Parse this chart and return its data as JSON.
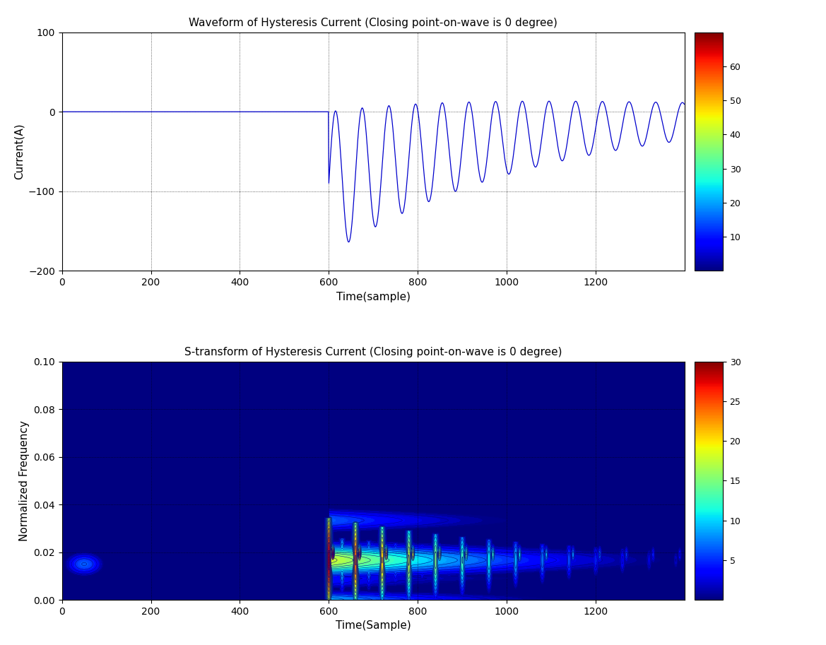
{
  "title1": "Waveform of Hysteresis Current (Closing point-on-wave is 0 degree)",
  "title2": "S-transform of Hysteresis Current (Closing point-on-wave is 0 degree)",
  "xlabel1": "Time(sample)",
  "ylabel1": "Current(A)",
  "xlabel2": "Time(Sample)",
  "ylabel2": "Normalized Frequency",
  "xlim": [
    0,
    1400
  ],
  "ylim1": [
    -200,
    100
  ],
  "ylim2": [
    0,
    0.1
  ],
  "yticks1": [
    -200,
    -100,
    0,
    100
  ],
  "yticks2": [
    0,
    0.02,
    0.04,
    0.06,
    0.08,
    0.1
  ],
  "xticks": [
    0,
    200,
    400,
    600,
    800,
    1000,
    1200
  ],
  "colorbar1_ticks": [
    10,
    20,
    30,
    40,
    50,
    60
  ],
  "colorbar1_min": 0,
  "colorbar1_max": 70,
  "colorbar2_ticks": [
    5,
    10,
    15,
    20,
    25,
    30
  ],
  "colorbar2_min": 0,
  "colorbar2_max": 30,
  "switch_point": 600,
  "n_samples": 1400,
  "line_color": "#0000CC",
  "bg_color": "#ffffff"
}
